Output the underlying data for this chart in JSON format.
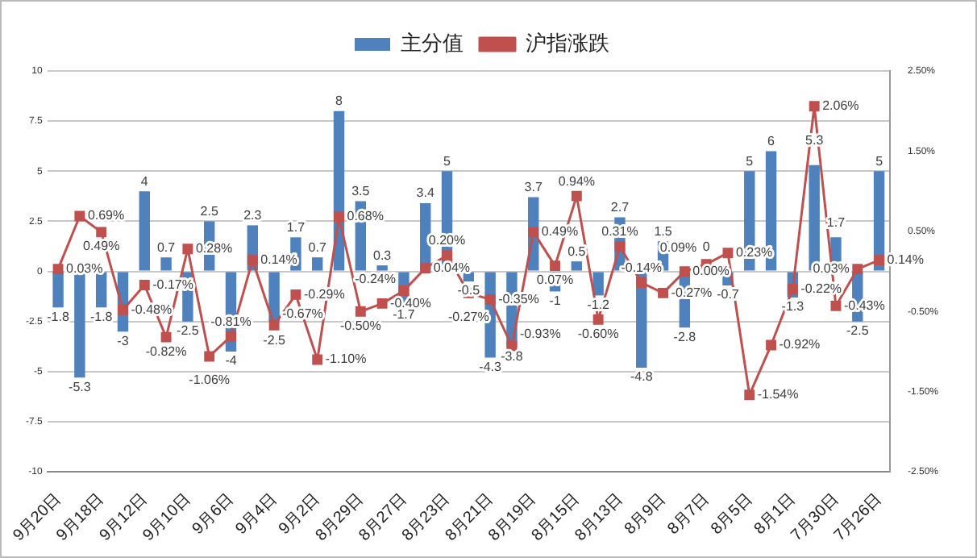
{
  "chart_data": {
    "type": "bar",
    "categories": [
      "9月20日",
      null,
      "9月18日",
      null,
      "9月12日",
      null,
      "9月10日",
      null,
      "9月6日",
      null,
      "9月4日",
      null,
      "9月2日",
      null,
      "8月29日",
      null,
      "8月27日",
      null,
      "8月23日",
      null,
      "8月21日",
      null,
      "8月19日",
      null,
      "8月15日",
      null,
      "8月13日",
      null,
      "8月9日",
      null,
      "8月7日",
      null,
      "8月5日",
      null,
      "8月1日",
      null,
      "7月30日",
      null,
      "7月26日"
    ],
    "series": [
      {
        "name": "主分值",
        "type": "bar",
        "color": "#4f81bd",
        "values": [
          -1.8,
          -5.3,
          -1.8,
          -3,
          4,
          0.7,
          -2.5,
          2.5,
          -4,
          2.3,
          -2.5,
          1.7,
          0.7,
          8,
          3.5,
          0.3,
          -1.7,
          3.4,
          5,
          -0.5,
          -4.3,
          -3.8,
          3.7,
          -1,
          0.5,
          -1.2,
          2.7,
          -4.8,
          1.5,
          -2.8,
          0,
          -0.7,
          5,
          6,
          -1.3,
          5.3,
          1.7,
          -2.5,
          5
        ],
        "value_labels": [
          "-1.8",
          "-5.3",
          "-1.8",
          "-3",
          "4",
          "0.7",
          "-2.5",
          "2.5",
          "-4",
          "2.3",
          "-2.5",
          "1.7",
          "0.7",
          "8",
          "3.5",
          "0.3",
          "-1.7",
          "3.4",
          "5",
          "-0.5",
          "-4.3",
          "-3.8",
          "3.7",
          "-1",
          "0.5",
          "-1.2",
          "2.7",
          "-4.8",
          "1.5",
          "-2.8",
          "0",
          "-0.7",
          "5",
          "6",
          "-1.3",
          "5.3",
          "1.7",
          "-2.5",
          "5"
        ]
      },
      {
        "name": "沪指涨跌",
        "type": "line",
        "axis": "y2",
        "color": "#c0504d",
        "marker": "square",
        "values": [
          0.03,
          0.69,
          0.49,
          -0.48,
          -0.17,
          -0.82,
          0.28,
          -1.06,
          -0.81,
          0.14,
          -0.67,
          -0.29,
          -1.1,
          0.68,
          -0.5,
          -0.4,
          -0.24,
          0.04,
          0.2,
          -0.27,
          -0.35,
          -0.93,
          0.49,
          0.07,
          0.94,
          -0.6,
          0.31,
          -0.14,
          -0.27,
          0,
          0.09,
          0.23,
          -1.54,
          -0.92,
          -0.22,
          2.06,
          -0.43,
          0.03,
          0.14
        ],
        "value_labels": [
          "0.03%",
          "0.69%",
          "0.49%",
          "-0.48%",
          "-0.17%",
          "-0.82%",
          "0.28%",
          "-1.06%",
          "-0.81%",
          "0.14%",
          "-0.67%",
          "-0.29%",
          "-1.10%",
          "0.68%",
          "-0.50%",
          "-0.40%",
          "-0.24%",
          "0.04%",
          "0.20%",
          "-0.27%",
          "-0.35%",
          "-0.93%",
          "0.49%",
          "0.07%",
          "0.94%",
          "-0.60%",
          "0.31%",
          "-0.14%",
          "-0.27%",
          "0.00%",
          "0.09%",
          "0.23%",
          "-1.54%",
          "-0.92%",
          "-0.22%",
          "2.06%",
          "-0.43%",
          "0.03%",
          "0.14%"
        ]
      }
    ],
    "ylim": [
      -10,
      10
    ],
    "yticks": [
      -10,
      -7.5,
      -5,
      -2.5,
      0,
      2.5,
      5,
      7.5,
      10
    ],
    "y2lim": [
      -2.5,
      2.5
    ],
    "y2ticks": [
      {
        "value": -2.5,
        "label": "-2.50%"
      },
      {
        "value": -1.5,
        "label": "-1.50%"
      },
      {
        "value": -0.5,
        "label": "-0.50%"
      },
      {
        "value": 0.5,
        "label": "0.50%"
      },
      {
        "value": 1.5,
        "label": "1.50%"
      },
      {
        "value": 2.5,
        "label": "2.50%"
      }
    ],
    "grid": "y",
    "legend": "top"
  }
}
